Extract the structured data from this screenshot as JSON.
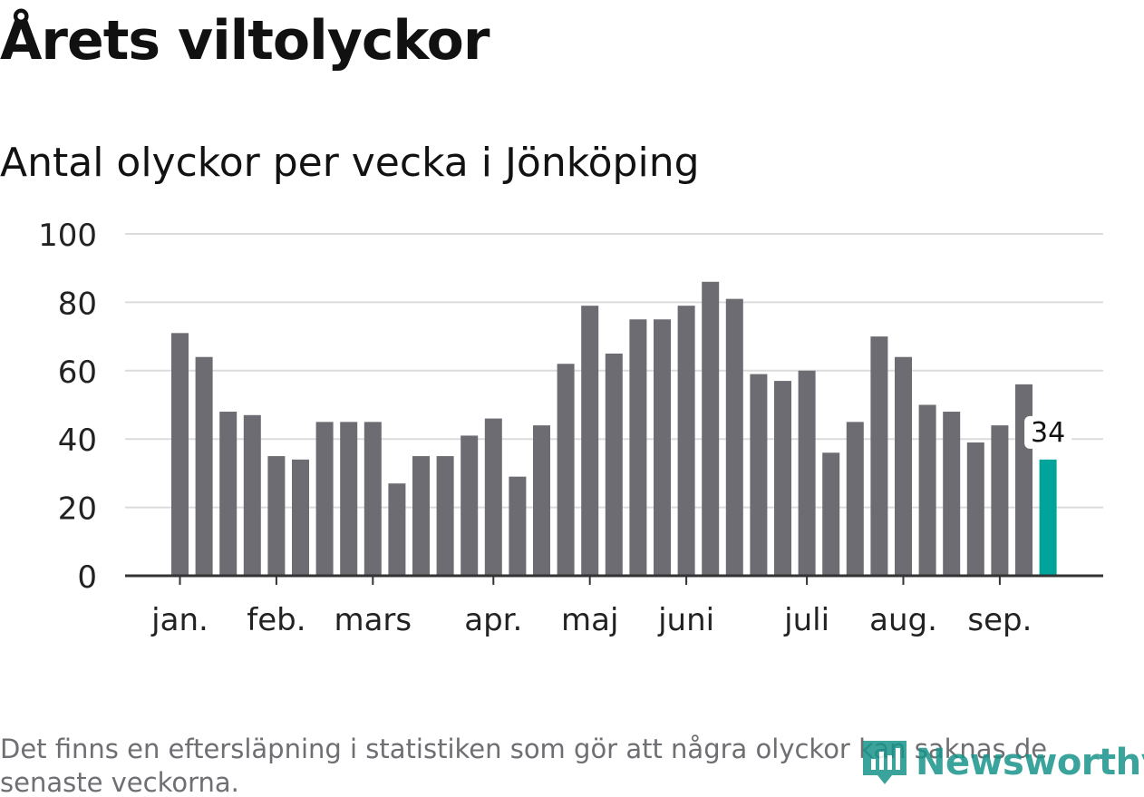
{
  "title": "Årets viltolyckor",
  "subtitle": "Antal olyckor per vecka i Jönköping",
  "footnote": "Det finns en eftersläpning i statistiken som gör att några olyckor kan saknas de senaste veckorna.",
  "logo_text": "Newsworthy",
  "colors": {
    "bar": "#6d6c72",
    "highlight": "#00a49a",
    "grid": "#dcdcdc",
    "axis": "#333333",
    "logo": "#18948a"
  },
  "chart_data": {
    "type": "bar",
    "title": "Antal olyckor per vecka i Jönköping",
    "xlabel": "",
    "ylabel": "",
    "ylim": [
      0,
      100
    ],
    "yticks": [
      0,
      20,
      40,
      60,
      80,
      100
    ],
    "grid": true,
    "week_start": 1,
    "values": [
      71,
      64,
      48,
      47,
      35,
      34,
      45,
      45,
      45,
      27,
      35,
      35,
      41,
      46,
      29,
      44,
      62,
      79,
      65,
      75,
      75,
      79,
      86,
      81,
      59,
      57,
      60,
      36,
      45,
      70,
      64,
      50,
      48,
      39,
      44,
      56,
      34
    ],
    "highlight_index": 36,
    "highlight_label": "34",
    "month_labels": [
      {
        "label": "jan.",
        "week": 1
      },
      {
        "label": "feb.",
        "week": 5
      },
      {
        "label": "mars",
        "week": 9
      },
      {
        "label": "apr.",
        "week": 14
      },
      {
        "label": "maj",
        "week": 18
      },
      {
        "label": "juni",
        "week": 22
      },
      {
        "label": "juli",
        "week": 27
      },
      {
        "label": "aug.",
        "week": 31
      },
      {
        "label": "sep.",
        "week": 35
      }
    ]
  }
}
